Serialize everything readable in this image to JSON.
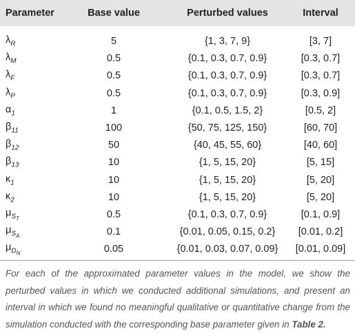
{
  "table": {
    "header": [
      "Parameter",
      "Base value",
      "Perturbed values",
      "Interval"
    ],
    "rows": [
      [
        {
          "symbol": "λ",
          "sub": "R"
        },
        "5",
        "{1, 3, 7, 9}",
        "[3, 7]"
      ],
      [
        {
          "symbol": "λ",
          "sub": "M"
        },
        "0.5",
        "{0.1, 0.3, 0.7, 0.9}",
        "[0.3, 0.7]"
      ],
      [
        {
          "symbol": "λ",
          "sub": "F"
        },
        "0.5",
        "{0.1, 0.3, 0.7, 0.9}",
        "[0.3, 0.7]"
      ],
      [
        {
          "symbol": "λ",
          "sub": "P"
        },
        "0.5",
        "{0.1, 0.3, 0.7, 0.9}",
        "[0.3, 0.9]"
      ],
      [
        {
          "symbol": "α",
          "sub": "1"
        },
        "1",
        "{0.1, 0.5, 1.5, 2}",
        "[0.5, 2]"
      ],
      [
        {
          "symbol": "β",
          "sub": "11"
        },
        "100",
        "{50, 75, 125, 150}",
        "[60, 70]"
      ],
      [
        {
          "symbol": "β",
          "sub": "12"
        },
        "50",
        "{40, 45, 55, 60}",
        "[40, 60]"
      ],
      [
        {
          "symbol": "β",
          "sub": "13"
        },
        "10",
        "{1, 5, 15, 20}",
        "[5, 15]"
      ],
      [
        {
          "symbol": "κ",
          "sub": "1"
        },
        "10",
        "{1, 5, 15, 20}",
        "[5, 20]"
      ],
      [
        {
          "symbol": "κ",
          "sub": "2"
        },
        "10",
        "{1, 5, 15, 20}",
        "[5, 20]"
      ],
      [
        {
          "symbol": "μ",
          "sub": "S",
          "subsub": "T"
        },
        "0.5",
        "{0.1, 0.3, 0.7, 0.9}",
        "[0.1, 0.9]"
      ],
      [
        {
          "symbol": "μ",
          "sub": "S",
          "subsub": "A"
        },
        "0.1",
        "{0.01, 0.05, 0.15, 0.2}",
        "[0.01, 0.2]"
      ],
      [
        {
          "symbol": "μ",
          "sub": "D",
          "subsub": "N"
        },
        "0.05",
        "{0.01, 0.03, 0.07, 0.09}",
        "[0.01, 0.09]"
      ]
    ]
  },
  "caption": {
    "text": "For each of the approximated parameter values in the model, we show the perturbed values in which we conducted additional simulations, and present an interval in which we found no meaningful qualitative or quantitative change from the simulation conducted with the corresponding base parameter given in ",
    "ref": "Table 2."
  }
}
